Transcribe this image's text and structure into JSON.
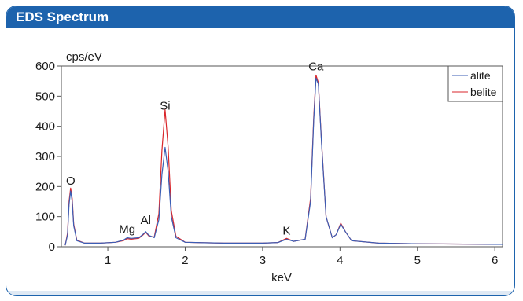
{
  "header": {
    "title": "EDS Spectrum"
  },
  "colors": {
    "brand": "#1d63ad",
    "alite": "#3b5eb5",
    "belite": "#d9262b"
  },
  "chart_data": {
    "type": "line",
    "title": "EDS Spectrum",
    "xlabel": "keV",
    "ylabel": "cps/eV",
    "xlim": [
      0.4,
      6.1
    ],
    "ylim": [
      0,
      600
    ],
    "xticks": [
      1,
      2,
      3,
      4,
      5,
      6
    ],
    "yticks": [
      0,
      100,
      200,
      300,
      400,
      500,
      600
    ],
    "legend": {
      "placement": "top-right"
    },
    "grid": false,
    "peaks": [
      {
        "label": "O",
        "x": 0.52,
        "y": 190
      },
      {
        "label": "Mg",
        "x": 1.25,
        "y": 30
      },
      {
        "label": "Al",
        "x": 1.49,
        "y": 60
      },
      {
        "label": "Si",
        "x": 1.74,
        "y": 440
      },
      {
        "label": "K",
        "x": 3.31,
        "y": 25
      },
      {
        "label": "Ca",
        "x": 3.69,
        "y": 570
      }
    ],
    "series": [
      {
        "name": "alite",
        "color": "#3b5eb5",
        "x": [
          0.45,
          0.48,
          0.5,
          0.52,
          0.54,
          0.56,
          0.6,
          0.7,
          0.9,
          1.1,
          1.2,
          1.25,
          1.3,
          1.4,
          1.45,
          1.49,
          1.53,
          1.6,
          1.66,
          1.7,
          1.74,
          1.78,
          1.82,
          1.88,
          2.0,
          2.5,
          3.0,
          3.2,
          3.31,
          3.4,
          3.55,
          3.62,
          3.66,
          3.69,
          3.72,
          3.76,
          3.82,
          3.9,
          3.95,
          4.01,
          4.07,
          4.15,
          4.5,
          5.0,
          6.0,
          6.1
        ],
        "y": [
          5,
          40,
          140,
          185,
          150,
          70,
          20,
          12,
          12,
          15,
          22,
          30,
          28,
          30,
          40,
          50,
          38,
          30,
          90,
          240,
          330,
          250,
          100,
          30,
          15,
          12,
          12,
          14,
          25,
          18,
          25,
          150,
          420,
          560,
          540,
          350,
          100,
          30,
          40,
          75,
          50,
          20,
          12,
          10,
          8,
          8
        ]
      },
      {
        "name": "belite",
        "color": "#d9262b",
        "x": [
          0.45,
          0.48,
          0.5,
          0.52,
          0.54,
          0.56,
          0.6,
          0.7,
          0.9,
          1.1,
          1.2,
          1.25,
          1.3,
          1.4,
          1.45,
          1.49,
          1.53,
          1.6,
          1.66,
          1.7,
          1.74,
          1.78,
          1.82,
          1.88,
          2.0,
          2.5,
          3.0,
          3.2,
          3.31,
          3.4,
          3.55,
          3.62,
          3.66,
          3.69,
          3.72,
          3.76,
          3.82,
          3.9,
          3.95,
          4.01,
          4.07,
          4.15,
          4.5,
          5.0,
          6.0,
          6.1
        ],
        "y": [
          5,
          45,
          150,
          195,
          160,
          75,
          22,
          12,
          12,
          15,
          20,
          27,
          25,
          28,
          38,
          48,
          36,
          32,
          110,
          320,
          455,
          330,
          120,
          35,
          15,
          12,
          12,
          14,
          28,
          18,
          25,
          160,
          430,
          570,
          545,
          355,
          100,
          30,
          40,
          78,
          50,
          20,
          12,
          10,
          8,
          8
        ]
      }
    ]
  }
}
